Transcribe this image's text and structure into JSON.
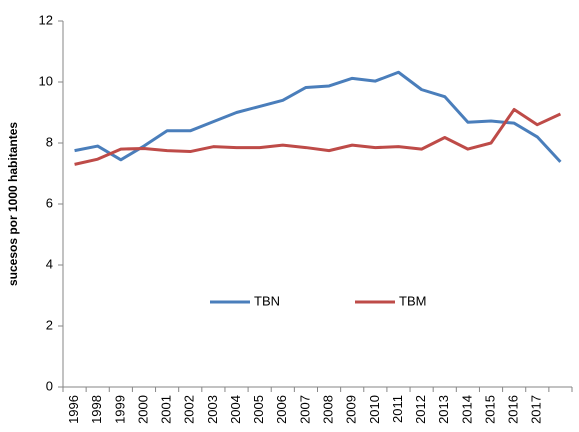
{
  "chart_data": {
    "type": "line",
    "y_label": "sucesos por 1000 habitantes",
    "categories": [
      "1996",
      "1998",
      "1999",
      "2000",
      "2001",
      "2002",
      "2003",
      "2004",
      "2005",
      "2006",
      "2007",
      "2008",
      "2009",
      "2010",
      "2011",
      "2012",
      "2013",
      "2014",
      "2015",
      "2016",
      "2017",
      null
    ],
    "series": [
      {
        "name": "TBN",
        "color": "#4a7ebb",
        "values": [
          7.75,
          7.9,
          7.45,
          7.9,
          8.4,
          8.4,
          8.7,
          9.0,
          9.2,
          9.4,
          9.82,
          9.87,
          10.12,
          10.03,
          10.32,
          9.75,
          9.52,
          8.68,
          8.72,
          8.65,
          8.2,
          7.38
        ]
      },
      {
        "name": "TBM",
        "color": "#be4b48",
        "values": [
          7.3,
          7.47,
          7.8,
          7.82,
          7.75,
          7.72,
          7.88,
          7.85,
          7.85,
          7.93,
          7.85,
          7.75,
          7.93,
          7.85,
          7.88,
          7.8,
          8.18,
          7.8,
          8.0,
          9.1,
          8.6,
          8.95
        ]
      }
    ],
    "ylim": [
      0,
      12
    ],
    "yticks": [
      0,
      2,
      4,
      6,
      8,
      10,
      12
    ],
    "grid": false,
    "legend": "center"
  }
}
